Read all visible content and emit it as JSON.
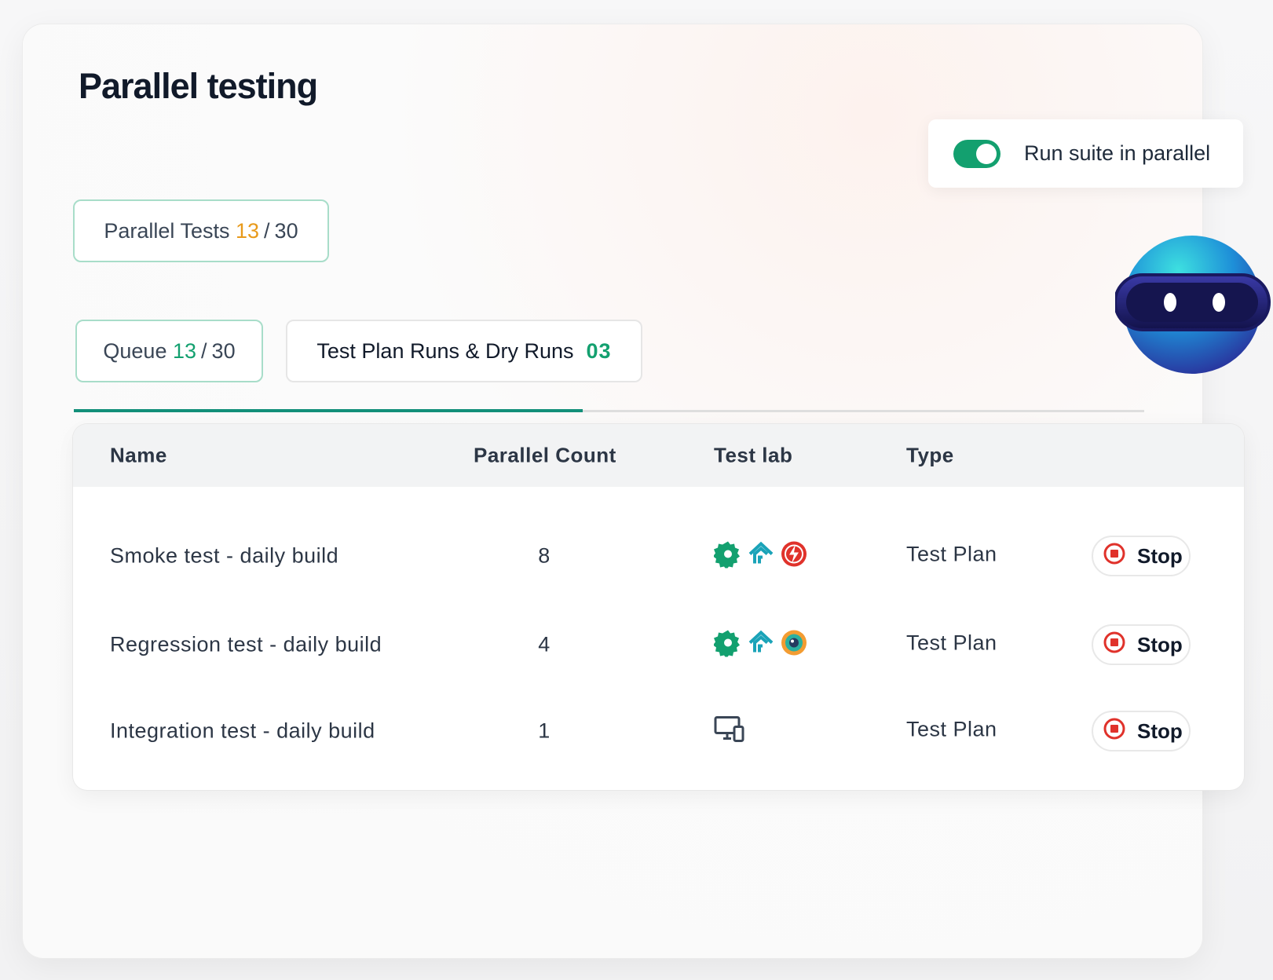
{
  "header": {
    "title": "Parallel testing"
  },
  "toggle": {
    "label": "Run suite in parallel",
    "on": true
  },
  "parallel_tests": {
    "label": "Parallel Tests",
    "used": "13",
    "separator": "/",
    "total": "30"
  },
  "tabs": [
    {
      "label": "Queue",
      "used": "13",
      "separator": "/",
      "total": "30",
      "active": true
    },
    {
      "label": "Test Plan Runs & Dry Runs",
      "count": "03",
      "active": false
    }
  ],
  "table": {
    "columns": [
      "Name",
      "Parallel Count",
      "Test lab",
      "Type"
    ],
    "rows": [
      {
        "name": "Smoke test - daily build",
        "count": "8",
        "type": "Test Plan",
        "action": "Stop"
      },
      {
        "name": "Regression test - daily build",
        "count": "4",
        "type": "Test Plan",
        "action": "Stop"
      },
      {
        "name": "Integration test - daily build",
        "count": "1",
        "type": "Test Plan",
        "action": "Stop"
      }
    ]
  }
}
